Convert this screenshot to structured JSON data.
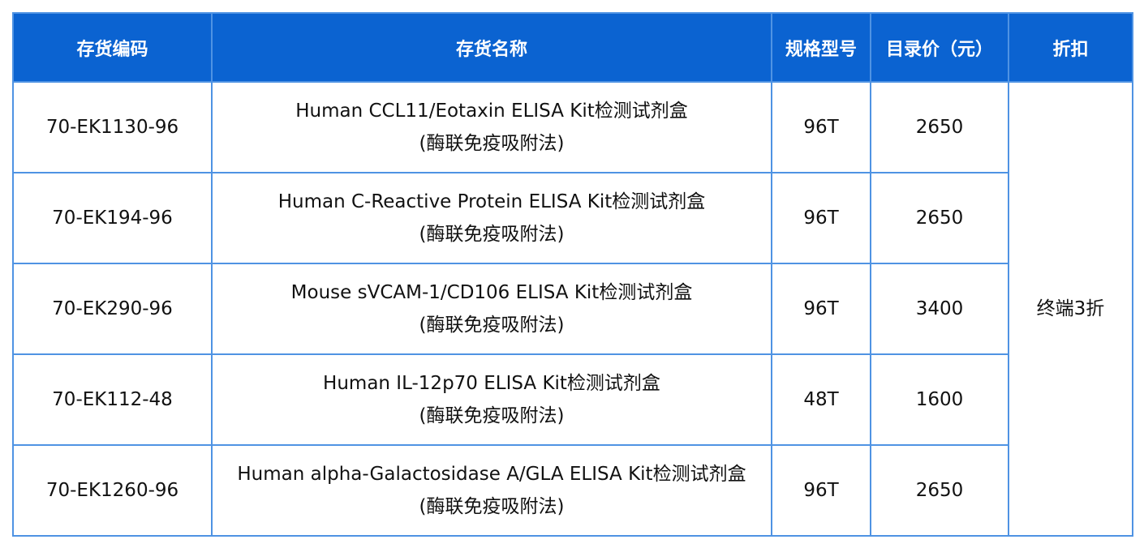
{
  "headers": [
    "存货编码",
    "存货名称",
    "规格型号",
    "目录价（元）",
    "折扣"
  ],
  "rows": [
    {
      "code": "70-EK1130-96",
      "name": "Human CCL11/Eotaxin ELISA Kit检测试剂盒",
      "method": "(酶联免疫吸附法)",
      "spec": "96T",
      "price": "2650"
    },
    {
      "code": "70-EK194-96",
      "name": "Human C-Reactive Protein ELISA Kit检测试剂盒",
      "method": "(酶联免疫吸附法)",
      "spec": "96T",
      "price": "2650"
    },
    {
      "code": "70-EK290-96",
      "name": "Mouse sVCAM-1/CD106 ELISA Kit检测试剂盒",
      "method": "(酶联免疫吸附法)",
      "spec": "96T",
      "price": "3400"
    },
    {
      "code": "70-EK112-48",
      "name": "Human IL-12p70 ELISA Kit检测试剂盒",
      "method": "(酶联免疫吸附法)",
      "spec": "48T",
      "price": "1600"
    },
    {
      "code": "70-EK1260-96",
      "name": "Human alpha-Galactosidase A/GLA ELISA Kit检测试剂盒",
      "method": "(酶联免疫吸附法)",
      "spec": "96T",
      "price": "2650"
    }
  ],
  "discount": "终端3折",
  "colors": {
    "header_bg": "#0b63d1",
    "border": "#4f93e3"
  }
}
